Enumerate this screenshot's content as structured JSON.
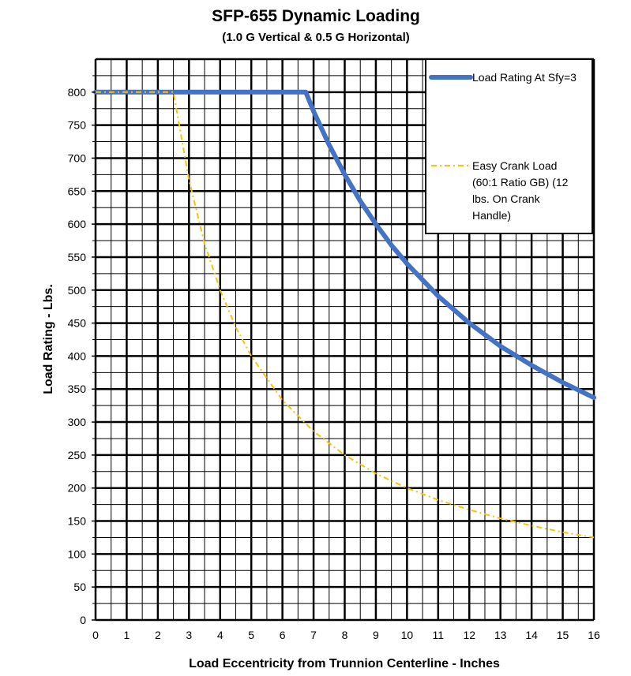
{
  "chart_data": {
    "type": "line",
    "title": "SFP-655 Dynamic Loading",
    "subtitle": "(1.0 G Vertical & 0.5 G Horizontal)",
    "xlabel": "Load Eccentricity from Trunnion Centerline - Inches",
    "ylabel": "Load Rating - Lbs.",
    "xlim": [
      0,
      16
    ],
    "ylim": [
      0,
      850
    ],
    "x_ticks": [
      0,
      1,
      2,
      3,
      4,
      5,
      6,
      7,
      8,
      9,
      10,
      11,
      12,
      13,
      14,
      15,
      16
    ],
    "y_ticks": [
      0,
      50,
      100,
      150,
      200,
      250,
      300,
      350,
      400,
      450,
      500,
      550,
      600,
      650,
      700,
      750,
      800
    ],
    "x_tick_labels": [
      "0",
      "1",
      "2",
      "3",
      "4",
      "5",
      "6",
      "7",
      "8",
      "9",
      "10",
      "11",
      "12",
      "13",
      "14",
      "15",
      "16"
    ],
    "y_tick_labels": [
      "0",
      "50",
      "100",
      "150",
      "200",
      "250",
      "300",
      "350",
      "400",
      "450",
      "500",
      "550",
      "600",
      "650",
      "700",
      "750",
      "800"
    ],
    "grid": true,
    "legend_position": "top-right",
    "series": [
      {
        "name": "Load Rating At Sfy=3",
        "color": "#4472C4",
        "style": "solid",
        "x": [
          0,
          6.75,
          7,
          7.5,
          8,
          8.5,
          9,
          9.5,
          10,
          11,
          12,
          13,
          14,
          15,
          16
        ],
        "y": [
          800,
          800,
          771,
          720,
          675,
          635,
          600,
          568,
          540,
          491,
          450,
          415,
          386,
          360,
          337
        ]
      },
      {
        "name": "Easy Crank Load (60:1 Ratio GB) (12 lbs. On Crank Handle)",
        "color": "#FFC000",
        "style": "dash-dot",
        "x": [
          0,
          2.5,
          3,
          3.5,
          4,
          4.5,
          5,
          6,
          7,
          8,
          9,
          10,
          11,
          12,
          13,
          14,
          15,
          16
        ],
        "y": [
          800,
          800,
          667,
          571,
          500,
          444,
          400,
          333,
          286,
          250,
          222,
          200,
          182,
          167,
          154,
          143,
          133,
          125
        ]
      }
    ]
  }
}
